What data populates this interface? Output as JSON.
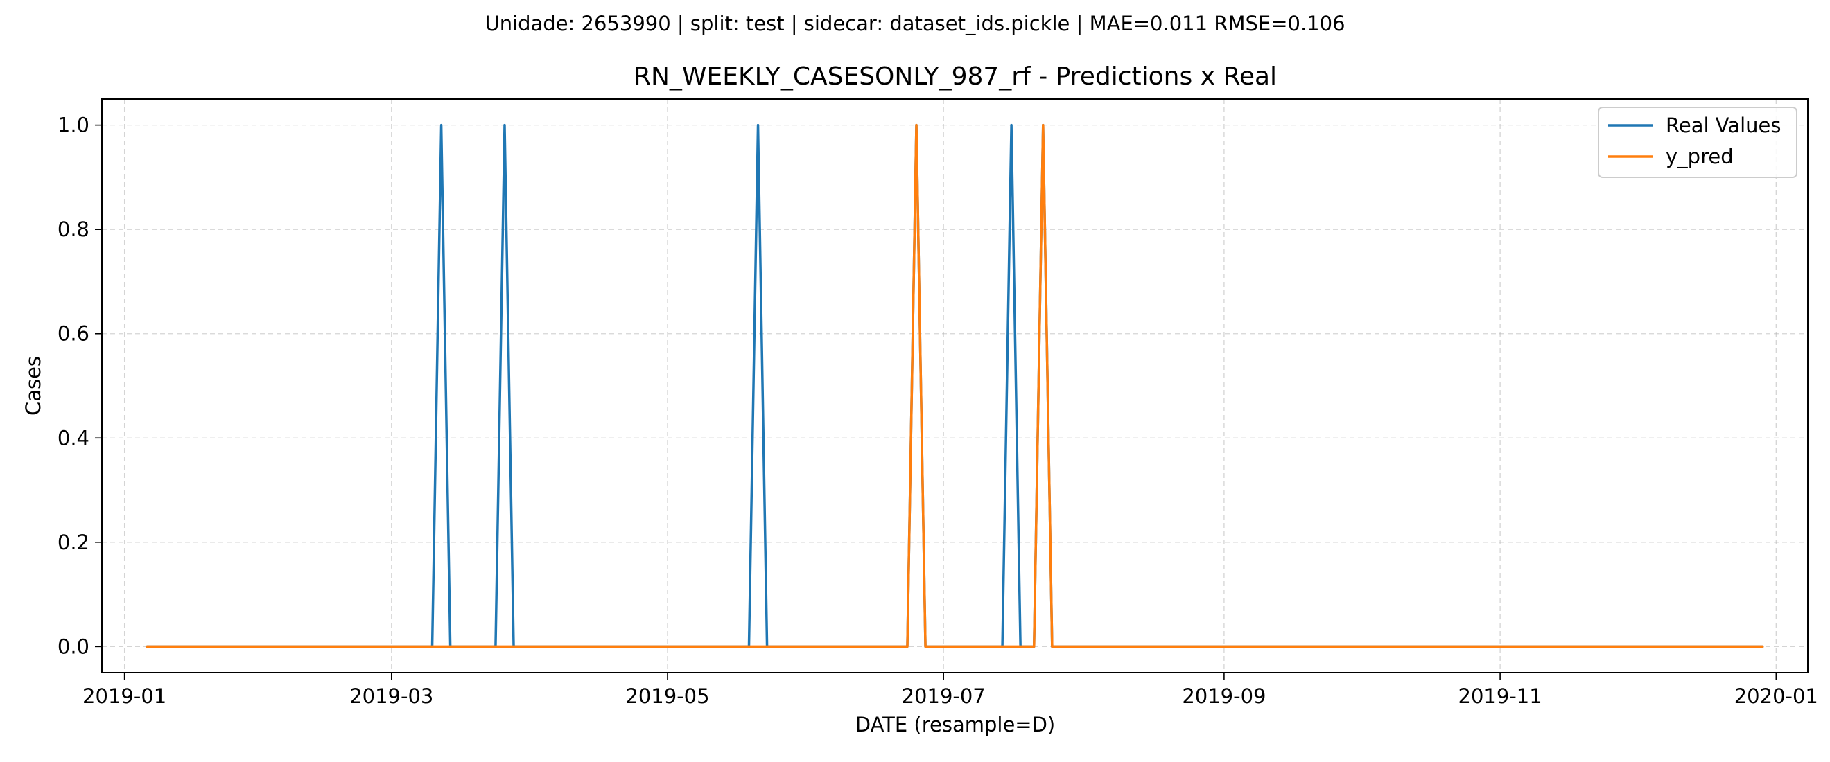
{
  "figure": {
    "suptitle": "Unidade: 2653990 | split: test | sidecar: dataset_ids.pickle | MAE=0.011  RMSE=0.106"
  },
  "chart_data": {
    "type": "line",
    "title": "RN_WEEKLY_CASESONLY_987_rf - Predictions x Real",
    "xlabel": "DATE (resample=D)",
    "ylabel": "Cases",
    "x_type": "date",
    "xlim": [
      "2018-12-27",
      "2020-01-08"
    ],
    "ylim": [
      -0.05,
      1.05
    ],
    "x_ticks": [
      "2019-01-01",
      "2019-03-01",
      "2019-05-01",
      "2019-07-01",
      "2019-09-01",
      "2019-11-01",
      "2020-01-01"
    ],
    "x_tick_labels": [
      "2019-01",
      "2019-03",
      "2019-05",
      "2019-07",
      "2019-09",
      "2019-11",
      "2020-01"
    ],
    "y_ticks": [
      0.0,
      0.2,
      0.4,
      0.6,
      0.8,
      1.0
    ],
    "y_tick_labels": [
      "0.0",
      "0.2",
      "0.4",
      "0.6",
      "0.8",
      "1.0"
    ],
    "grid": true,
    "legend_position": "top-right",
    "series": [
      {
        "name": "Real Values",
        "color": "#1f77b4",
        "points": [
          [
            "2019-01-06",
            0
          ],
          [
            "2019-03-10",
            0
          ],
          [
            "2019-03-12",
            1
          ],
          [
            "2019-03-14",
            0
          ],
          [
            "2019-03-24",
            0
          ],
          [
            "2019-03-26",
            1
          ],
          [
            "2019-03-28",
            0
          ],
          [
            "2019-05-19",
            0
          ],
          [
            "2019-05-21",
            1
          ],
          [
            "2019-05-23",
            0
          ],
          [
            "2019-06-23",
            0
          ],
          [
            "2019-06-25",
            1
          ],
          [
            "2019-06-27",
            0
          ],
          [
            "2019-07-14",
            0
          ],
          [
            "2019-07-16",
            1
          ],
          [
            "2019-07-18",
            0
          ],
          [
            "2019-07-21",
            0
          ],
          [
            "2019-07-23",
            1
          ],
          [
            "2019-07-25",
            0
          ],
          [
            "2019-12-29",
            0
          ]
        ]
      },
      {
        "name": "y_pred",
        "color": "#ff7f0e",
        "points": [
          [
            "2019-01-06",
            0
          ],
          [
            "2019-06-23",
            0
          ],
          [
            "2019-06-25",
            1
          ],
          [
            "2019-06-27",
            0
          ],
          [
            "2019-07-21",
            0
          ],
          [
            "2019-07-23",
            1
          ],
          [
            "2019-07-25",
            0
          ],
          [
            "2019-12-29",
            0
          ]
        ]
      }
    ]
  }
}
